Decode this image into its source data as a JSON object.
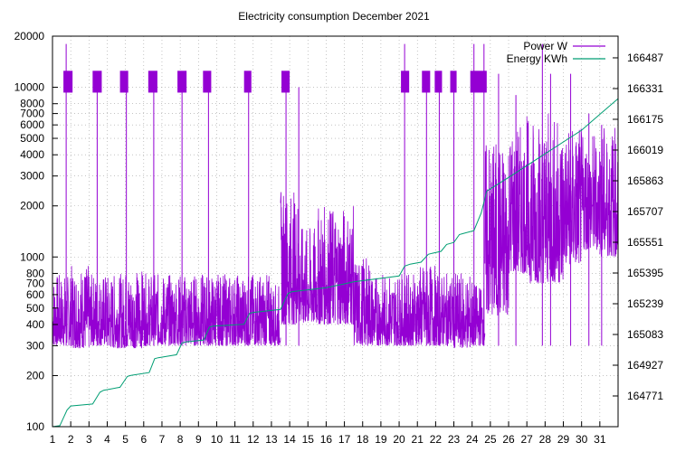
{
  "chart_data": {
    "type": "line",
    "title": "Electricity consumption December 2021",
    "xlabel": "",
    "ylabel": "",
    "y2label": "",
    "grid": true,
    "legend_position": "top-right",
    "x_ticks": [
      "1",
      "2",
      "3",
      "4",
      "5",
      "6",
      "7",
      "8",
      "9",
      "10",
      "11",
      "12",
      "13",
      "14",
      "15",
      "16",
      "17",
      "18",
      "19",
      "20",
      "21",
      "22",
      "23",
      "24",
      "25",
      "26",
      "27",
      "28",
      "29",
      "30",
      "31"
    ],
    "xlim": [
      1,
      32
    ],
    "y_scale": "log",
    "ylim": [
      100,
      20000
    ],
    "y_tick_values": [
      100,
      200,
      300,
      400,
      500,
      600,
      700,
      800,
      1000,
      2000,
      3000,
      4000,
      5000,
      6000,
      7000,
      8000,
      10000,
      20000
    ],
    "y_tick_labels": [
      "100",
      "200",
      "300",
      "400",
      "500",
      "600",
      "700",
      "800",
      "1000",
      "2000",
      "3000",
      "4000",
      "5000",
      "6000",
      "7000",
      "8000",
      "10000",
      "20000"
    ],
    "y2lim": [
      164615,
      166597
    ],
    "y2_tick_values": [
      164771,
      164927,
      165083,
      165239,
      165395,
      165551,
      165707,
      165863,
      166019,
      166175,
      166331,
      166487
    ],
    "y2_tick_labels": [
      "164771",
      "164927",
      "165083",
      "165239",
      "165395",
      "165551",
      "165707",
      "165863",
      "166019",
      "166175",
      "166331",
      "166487"
    ],
    "series": [
      {
        "name": "Power W",
        "color": "#9400d3",
        "axis": "y",
        "base_band": [
          {
            "x": [
              1.0,
              2.0
            ],
            "range": [
              300,
              800
            ]
          },
          {
            "x": [
              2.0,
              3.0
            ],
            "range": [
              290,
              900
            ]
          },
          {
            "x": [
              3.0,
              4.0
            ],
            "range": [
              300,
              800
            ]
          },
          {
            "x": [
              4.0,
              5.0
            ],
            "range": [
              290,
              800
            ]
          },
          {
            "x": [
              5.0,
              6.0
            ],
            "range": [
              290,
              850
            ]
          },
          {
            "x": [
              6.0,
              7.0
            ],
            "range": [
              300,
              800
            ]
          },
          {
            "x": [
              7.0,
              8.0
            ],
            "range": [
              300,
              800
            ]
          },
          {
            "x": [
              8.0,
              9.0
            ],
            "range": [
              300,
              800
            ]
          },
          {
            "x": [
              9.0,
              10.0
            ],
            "range": [
              300,
              800
            ]
          },
          {
            "x": [
              10.0,
              11.0
            ],
            "range": [
              300,
              800
            ]
          },
          {
            "x": [
              11.0,
              12.0
            ],
            "range": [
              300,
              800
            ]
          },
          {
            "x": [
              12.0,
              13.0
            ],
            "range": [
              300,
              800
            ]
          },
          {
            "x": [
              13.0,
              13.5
            ],
            "range": [
              300,
              700
            ]
          },
          {
            "x": [
              13.5,
              14.5
            ],
            "range": [
              400,
              2500
            ]
          },
          {
            "x": [
              14.5,
              15.5
            ],
            "range": [
              400,
              1500
            ]
          },
          {
            "x": [
              15.5,
              16.5
            ],
            "range": [
              400,
              2000
            ]
          },
          {
            "x": [
              16.5,
              17.5
            ],
            "range": [
              400,
              2000
            ]
          },
          {
            "x": [
              17.5,
              18.5
            ],
            "range": [
              300,
              1000
            ]
          },
          {
            "x": [
              18.5,
              20.0
            ],
            "range": [
              300,
              800
            ]
          },
          {
            "x": [
              20.0,
              21.0
            ],
            "range": [
              300,
              800
            ]
          },
          {
            "x": [
              21.0,
              22.0
            ],
            "range": [
              300,
              900
            ]
          },
          {
            "x": [
              22.0,
              23.0
            ],
            "range": [
              300,
              800
            ]
          },
          {
            "x": [
              23.0,
              24.0
            ],
            "range": [
              290,
              800
            ]
          },
          {
            "x": [
              24.0,
              24.7
            ],
            "range": [
              300,
              700
            ]
          },
          {
            "x": [
              24.7,
              26.0
            ],
            "range": [
              450,
              5000
            ]
          },
          {
            "x": [
              26.0,
              27.0
            ],
            "range": [
              800,
              6000
            ]
          },
          {
            "x": [
              27.0,
              28.0
            ],
            "range": [
              700,
              7000
            ]
          },
          {
            "x": [
              28.0,
              29.0
            ],
            "range": [
              700,
              7000
            ]
          },
          {
            "x": [
              29.0,
              30.0
            ],
            "range": [
              900,
              6000
            ]
          },
          {
            "x": [
              30.0,
              31.0
            ],
            "range": [
              1100,
              5500
            ]
          },
          {
            "x": [
              31.0,
              32.0
            ],
            "range": [
              1000,
              6000
            ]
          }
        ],
        "high_blocks": [
          {
            "x": [
              1.6,
              2.1
            ],
            "range": [
              9300,
              12500
            ]
          },
          {
            "x": [
              3.2,
              3.7
            ],
            "range": [
              9300,
              12500
            ]
          },
          {
            "x": [
              4.7,
              5.15
            ],
            "range": [
              9300,
              12500
            ]
          },
          {
            "x": [
              6.25,
              6.75
            ],
            "range": [
              9300,
              12500
            ]
          },
          {
            "x": [
              7.85,
              8.35
            ],
            "range": [
              9300,
              12500
            ]
          },
          {
            "x": [
              9.25,
              9.7
            ],
            "range": [
              9300,
              12500
            ]
          },
          {
            "x": [
              11.5,
              11.9
            ],
            "range": [
              9300,
              12500
            ]
          },
          {
            "x": [
              13.55,
              14.0
            ],
            "range": [
              9300,
              12500
            ]
          },
          {
            "x": [
              20.1,
              20.55
            ],
            "range": [
              9300,
              12500
            ]
          },
          {
            "x": [
              21.25,
              21.7
            ],
            "range": [
              9300,
              12500
            ]
          },
          {
            "x": [
              21.95,
              22.35
            ],
            "range": [
              9300,
              12500
            ]
          },
          {
            "x": [
              22.8,
              23.15
            ],
            "range": [
              9300,
              12500
            ]
          },
          {
            "x": [
              23.9,
              24.8
            ],
            "range": [
              9300,
              12500
            ]
          }
        ],
        "spikes": [
          {
            "x": 1.75,
            "y": 18000
          },
          {
            "x": 3.45,
            "y": 12000
          },
          {
            "x": 5.05,
            "y": 12000
          },
          {
            "x": 6.55,
            "y": 12000
          },
          {
            "x": 8.1,
            "y": 12000
          },
          {
            "x": 9.55,
            "y": 12000
          },
          {
            "x": 11.75,
            "y": 12000
          },
          {
            "x": 13.8,
            "y": 12000
          },
          {
            "x": 14.5,
            "y": 10000
          },
          {
            "x": 20.3,
            "y": 18000
          },
          {
            "x": 21.5,
            "y": 12000
          },
          {
            "x": 22.2,
            "y": 12000
          },
          {
            "x": 23.0,
            "y": 12000
          },
          {
            "x": 24.1,
            "y": 18000
          },
          {
            "x": 24.65,
            "y": 18000
          },
          {
            "x": 25.45,
            "y": 12000
          },
          {
            "x": 26.4,
            "y": 9000
          },
          {
            "x": 27.85,
            "y": 18000
          },
          {
            "x": 28.3,
            "y": 12000
          },
          {
            "x": 29.4,
            "y": 12000
          },
          {
            "x": 30.4,
            "y": 7000
          },
          {
            "x": 31.1,
            "y": 6000
          }
        ]
      },
      {
        "name": "Energy KWh",
        "color": "#009e73",
        "axis": "y2",
        "x": [
          1.0,
          1.4,
          1.8,
          2.0,
          3.2,
          3.6,
          3.8,
          4.7,
          5.1,
          5.3,
          6.3,
          6.6,
          6.8,
          7.8,
          8.1,
          8.3,
          9.3,
          9.6,
          9.8,
          11.5,
          11.8,
          12.0,
          13.5,
          13.9,
          14.1,
          16.0,
          17.0,
          17.5,
          20.0,
          20.3,
          20.6,
          21.2,
          21.6,
          21.8,
          22.3,
          22.6,
          22.8,
          23.0,
          23.3,
          23.5,
          24.1,
          24.5,
          24.8,
          26.0,
          28.0,
          30.0,
          31.0,
          32.0
        ],
        "values": [
          164615,
          164620,
          164700,
          164720,
          164730,
          164790,
          164800,
          164815,
          164870,
          164875,
          164890,
          164960,
          164965,
          164980,
          165040,
          165045,
          165055,
          165120,
          165125,
          165135,
          165190,
          165195,
          165210,
          165290,
          165300,
          165320,
          165340,
          165350,
          165380,
          165430,
          165440,
          165450,
          165490,
          165495,
          165505,
          165540,
          165545,
          165550,
          165590,
          165595,
          165610,
          165700,
          165810,
          165880,
          166000,
          166120,
          166200,
          166280
        ]
      }
    ]
  }
}
